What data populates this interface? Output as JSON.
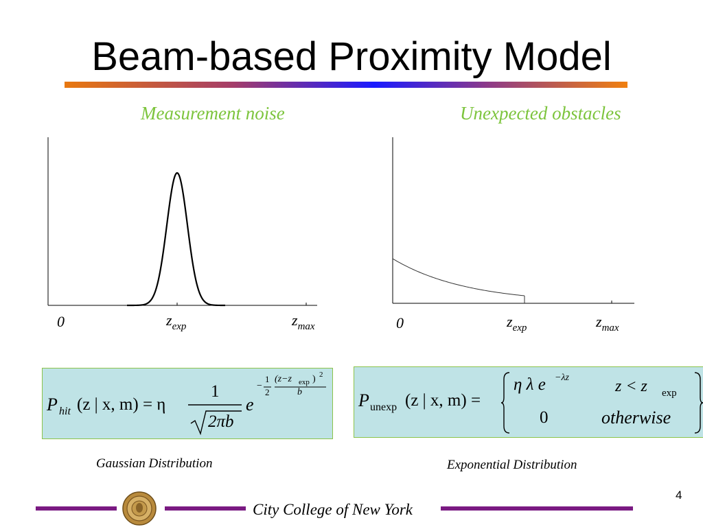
{
  "slide": {
    "title": "Beam-based Proximity Model",
    "page_number": "4",
    "footer_text": "City College of New York"
  },
  "left_panel": {
    "subtitle": "Measurement noise",
    "axis_labels": {
      "zero": "0",
      "z_exp_base": "z",
      "z_exp_sub": "exp",
      "z_max_base": "z",
      "z_max_sub": "max"
    },
    "formula": {
      "lhs_P": "P",
      "lhs_sub": "hit",
      "lhs_args": "(z | x, m) = η",
      "frac_num": "1",
      "frac_den": "2πb",
      "e": "e",
      "exp_minus": "−",
      "exp_half_num": "1",
      "exp_half_den": "2",
      "exp_num": "(z−z",
      "exp_num_sub": "exp",
      "exp_num_close": ")",
      "exp_num_sq": "2",
      "exp_den": "b"
    },
    "caption": "Gaussian Distribution"
  },
  "right_panel": {
    "subtitle": "Unexpected obstacles",
    "axis_labels": {
      "zero": "0",
      "z_exp_base": "z",
      "z_exp_sub": "exp",
      "z_max_base": "z",
      "z_max_sub": "max"
    },
    "formula": {
      "lhs_P": "P",
      "lhs_sub": "unexp",
      "lhs_args": "(z | x, m) =",
      "case1_expr": "η λ e",
      "case1_exp": "−λz",
      "case1_cond_base": "z < z",
      "case1_cond_sub": "exp",
      "case2_expr": "0",
      "case2_cond": "otherwise"
    },
    "caption": "Exponential Distribution"
  },
  "colors": {
    "subtitle": "#7cc43c",
    "formula_bg": "#bfe3e6",
    "footer_line": "#7a1a82"
  }
}
